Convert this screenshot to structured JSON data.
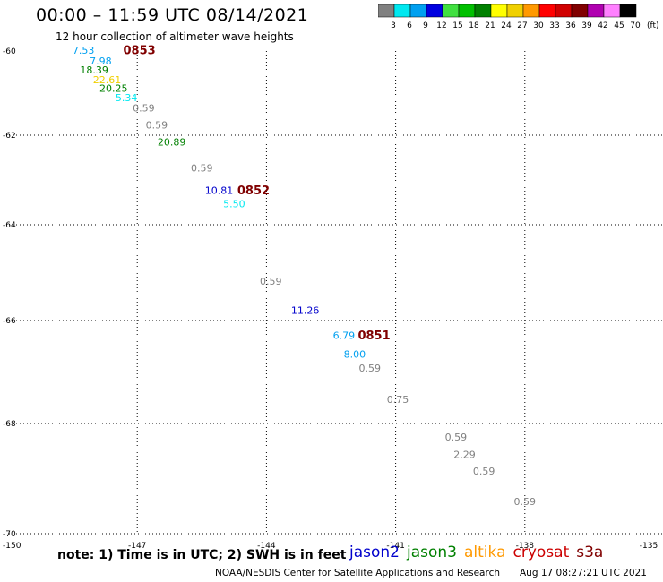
{
  "header": {
    "title": "00:00 – 11:59 UTC 08/14/2021",
    "subtitle": "12 hour collection of altimeter wave heights"
  },
  "colorbar": {
    "labels": [
      "3",
      "6",
      "9",
      "12",
      "15",
      "18",
      "21",
      "24",
      "27",
      "30",
      "33",
      "36",
      "39",
      "42",
      "45",
      "70"
    ],
    "unit": "(ft)",
    "colors": [
      "#808080",
      "#00e8f0",
      "#00a0f0",
      "#0000e0",
      "#40e040",
      "#00c000",
      "#008000",
      "#ffff00",
      "#f0d000",
      "#ff9900",
      "#ff0000",
      "#d00000",
      "#800000",
      "#b000b0",
      "#ff80ff",
      "#000000"
    ]
  },
  "map": {
    "x_ticks": [
      "-150",
      "-147",
      "-144",
      "-141",
      "-138",
      "-135"
    ],
    "y_ticks": [
      "-60",
      "-62",
      "-64",
      "-66",
      "-68",
      "-70"
    ]
  },
  "note": "note: 1) Time is in UTC; 2) SWH is in feet",
  "legend": [
    {
      "name": "jason2",
      "color": "#0000cc"
    },
    {
      "name": "jason3",
      "color": "#008000"
    },
    {
      "name": "altika",
      "color": "#ff9900"
    },
    {
      "name": "cryosat",
      "color": "#cc0000"
    },
    {
      "name": "s3a",
      "color": "#800000"
    }
  ],
  "footer": {
    "credit": "NOAA/NESDIS Center for Satellite Applications and Research",
    "timestamp": "Aug 17 08:27:21 UTC 2021"
  },
  "observations": [
    {
      "lon": -148.25,
      "lat": -60.0,
      "text": "7.53",
      "color": "#00a0f0"
    },
    {
      "lon": -147.85,
      "lat": -60.26,
      "text": "7.98",
      "color": "#00a0f0"
    },
    {
      "lon": -148.0,
      "lat": -60.47,
      "text": "18.39",
      "color": "#008000"
    },
    {
      "lon": -147.7,
      "lat": -60.7,
      "text": "22.61",
      "color": "#f0d000"
    },
    {
      "lon": -147.55,
      "lat": -60.9,
      "text": "20.25",
      "color": "#008000"
    },
    {
      "lon": -147.25,
      "lat": -61.13,
      "text": "5.34",
      "color": "#00e8f0"
    },
    {
      "lon": -146.85,
      "lat": -61.37,
      "text": "0.59",
      "color": "#808080"
    },
    {
      "lon": -146.55,
      "lat": -61.78,
      "text": "0.59",
      "color": "#808080"
    },
    {
      "lon": -146.2,
      "lat": -62.17,
      "text": "20.89",
      "color": "#008000"
    },
    {
      "lon": -145.5,
      "lat": -62.75,
      "text": "0.59",
      "color": "#808080"
    },
    {
      "lon": -145.1,
      "lat": -63.25,
      "text": "10.81",
      "color": "#0000cc"
    },
    {
      "lon": -144.75,
      "lat": -63.55,
      "text": "5.50",
      "color": "#00e8f0"
    },
    {
      "lon": -143.9,
      "lat": -65.2,
      "text": "0.59",
      "color": "#808080"
    },
    {
      "lon": -143.1,
      "lat": -65.8,
      "text": "11.26",
      "color": "#0000cc"
    },
    {
      "lon": -142.2,
      "lat": -66.3,
      "text": "6.79",
      "color": "#00a0f0"
    },
    {
      "lon": -141.95,
      "lat": -66.67,
      "text": "8.00",
      "color": "#00a0f0"
    },
    {
      "lon": -141.6,
      "lat": -66.94,
      "text": "0.59",
      "color": "#808080"
    },
    {
      "lon": -140.95,
      "lat": -67.55,
      "text": "0.75",
      "color": "#808080"
    },
    {
      "lon": -139.6,
      "lat": -68.26,
      "text": "0.59",
      "color": "#808080"
    },
    {
      "lon": -139.4,
      "lat": -68.58,
      "text": "2.29",
      "color": "#808080"
    },
    {
      "lon": -138.95,
      "lat": -68.88,
      "text": "0.59",
      "color": "#808080"
    },
    {
      "lon": -138.0,
      "lat": -69.43,
      "text": "0.59",
      "color": "#808080"
    }
  ],
  "time_labels": [
    {
      "lon": -146.95,
      "lat": -60.0,
      "text": "0853",
      "color": "#800000"
    },
    {
      "lon": -144.3,
      "lat": -63.25,
      "text": "0852",
      "color": "#800000"
    },
    {
      "lon": -141.5,
      "lat": -66.3,
      "text": "0851",
      "color": "#800000"
    }
  ]
}
